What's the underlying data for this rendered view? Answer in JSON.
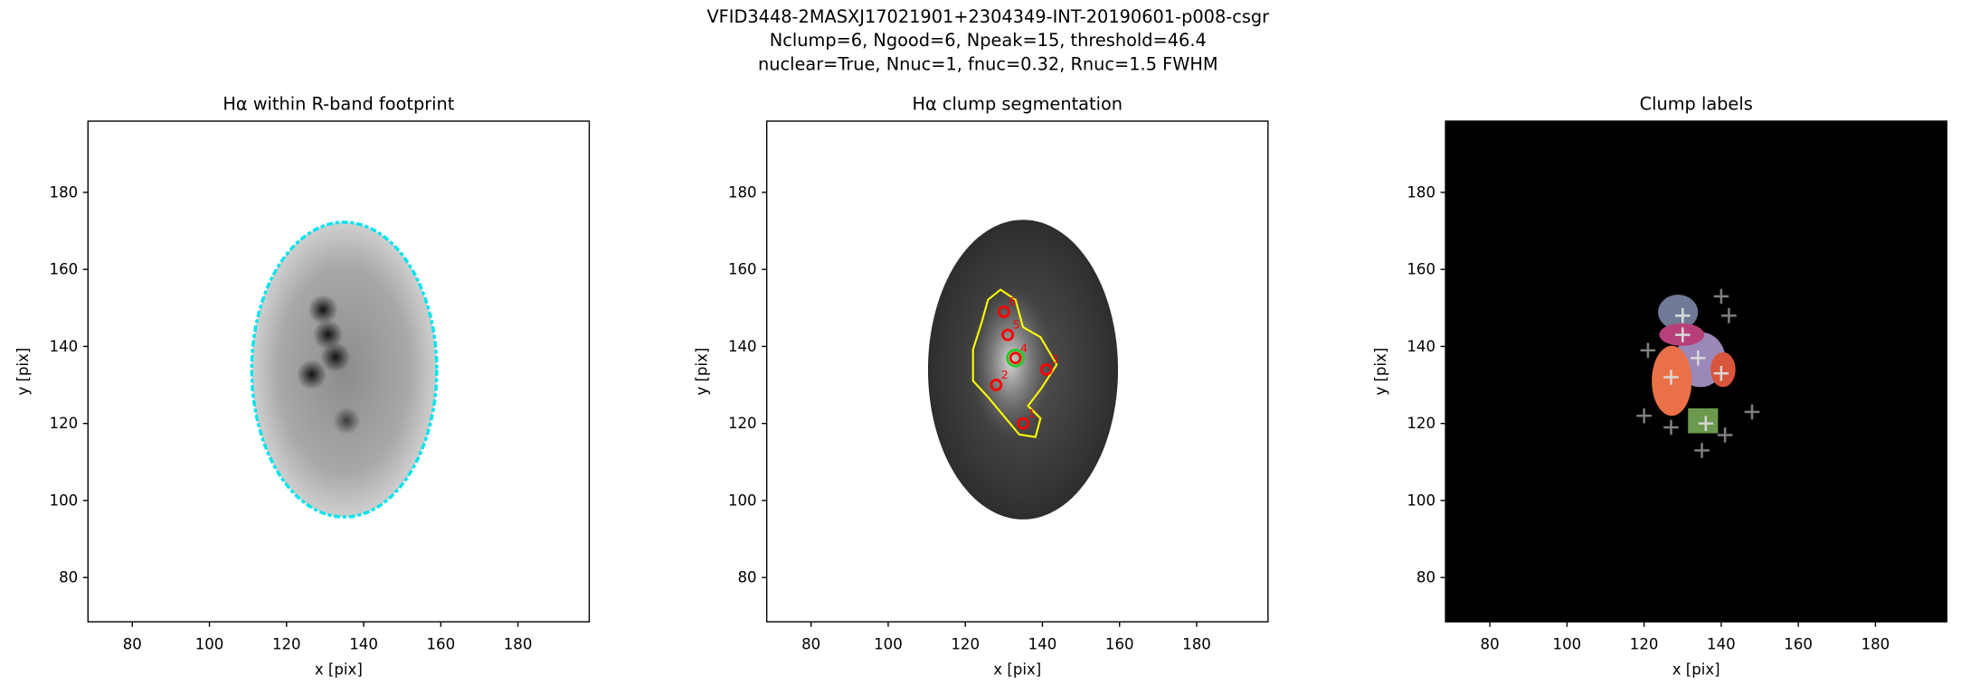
{
  "suptitle": [
    "VFID3448-2MASXJ17021901+2304349-INT-20190601-p008-csgr",
    "Nclump=6, Ngood=6, Npeak=15, threshold=46.4",
    "nuclear=True, Nnuc=1, fnuc=0.32, Rnuc=1.5 FWHM"
  ],
  "chart_data": [
    {
      "type": "image",
      "title": "Hα within R-band footprint",
      "xlabel": "x [pix]",
      "ylabel": "y [pix]",
      "xlim": [
        68.5,
        198.5
      ],
      "ylim": [
        68.5,
        198.5
      ],
      "xticks": [
        80,
        100,
        120,
        140,
        160,
        180
      ],
      "yticks": [
        80,
        100,
        120,
        140,
        160,
        180
      ],
      "background": "#ffffff",
      "series": []
    },
    {
      "type": "image",
      "title": "Hα clump segmentation",
      "xlabel": "x [pix]",
      "ylabel": "y [pix]",
      "xlim": [
        68.5,
        198.5
      ],
      "ylim": [
        68.5,
        198.5
      ],
      "xticks": [
        80,
        100,
        120,
        140,
        160,
        180
      ],
      "yticks": [
        80,
        100,
        120,
        140,
        160,
        180
      ],
      "background": "#ffffff",
      "series": [
        {
          "marker": "circle",
          "color": "#ff0000",
          "x": [
            135,
            128,
            141,
            133,
            131,
            130
          ],
          "values": [
            120,
            130,
            134,
            137,
            143,
            149
          ],
          "labels": [
            "1",
            "2",
            "3",
            "4",
            "5",
            "6"
          ]
        },
        {
          "marker": "circle",
          "color": "#22cc22",
          "x": [
            133
          ],
          "values": [
            137
          ]
        }
      ]
    },
    {
      "type": "image",
      "title": "Clump labels",
      "xlabel": "x [pix]",
      "ylabel": "y [pix]",
      "xlim": [
        68.5,
        198.5
      ],
      "ylim": [
        68.5,
        198.5
      ],
      "xticks": [
        80,
        100,
        120,
        140,
        160,
        180
      ],
      "yticks": [
        80,
        100,
        120,
        140,
        160,
        180
      ],
      "background": "#000000",
      "series": [
        {
          "marker": "plus",
          "color": "#d8d8d8",
          "x": [
            130,
            130,
            134,
            127,
            140,
            136
          ],
          "values": [
            148,
            143,
            137,
            132,
            133,
            120
          ]
        },
        {
          "marker": "plus",
          "color": "#808080",
          "x": [
            140,
            142,
            121,
            120,
            127,
            135,
            141,
            148
          ],
          "values": [
            153,
            148,
            139,
            122,
            119,
            113,
            117,
            123
          ]
        }
      ]
    }
  ]
}
